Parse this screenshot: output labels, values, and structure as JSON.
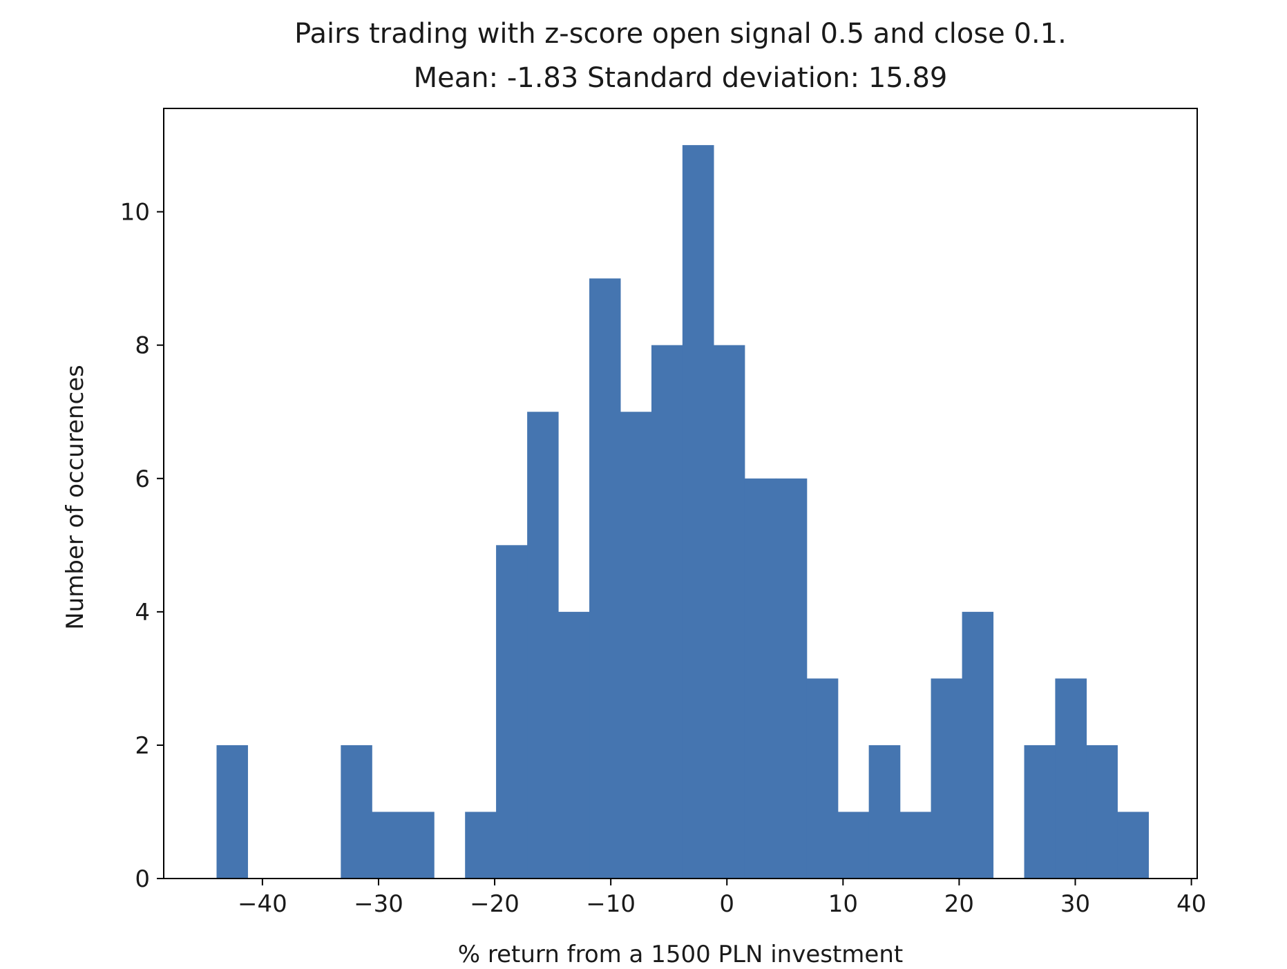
{
  "colors": {
    "bar": "#4575b0",
    "axis": "#000000",
    "text": "#1a1a1a"
  },
  "chart_data": {
    "type": "bar",
    "title": "Pairs trading with z-score open signal 0.5 and close 0.1.",
    "subtitle": "Mean: -1.83 Standard deviation: 15.89",
    "xlabel": "% return from a 1500 PLN investment",
    "ylabel": "Number of occurences",
    "xlim": [
      -48.5,
      40.5
    ],
    "ylim": [
      0,
      11.55
    ],
    "xticks": [
      -40,
      -30,
      -20,
      -10,
      0,
      10,
      20,
      30,
      40
    ],
    "xtick_labels": [
      "−40",
      "−30",
      "−20",
      "−10",
      "0",
      "10",
      "20",
      "30",
      "40"
    ],
    "yticks": [
      0,
      2,
      4,
      6,
      8,
      10
    ],
    "ytick_labels": [
      "0",
      "2",
      "4",
      "6",
      "8",
      "10"
    ],
    "grid": false,
    "bins": [
      {
        "x0": -43.95,
        "x1": -41.28,
        "count": 2
      },
      {
        "x0": -41.28,
        "x1": -38.6,
        "count": 0
      },
      {
        "x0": -38.6,
        "x1": -35.93,
        "count": 0
      },
      {
        "x0": -35.93,
        "x1": -33.25,
        "count": 0
      },
      {
        "x0": -33.25,
        "x1": -30.58,
        "count": 2
      },
      {
        "x0": -30.58,
        "x1": -27.9,
        "count": 1
      },
      {
        "x0": -27.9,
        "x1": -25.23,
        "count": 1
      },
      {
        "x0": -25.23,
        "x1": -22.55,
        "count": 0
      },
      {
        "x0": -22.55,
        "x1": -19.88,
        "count": 1
      },
      {
        "x0": -19.88,
        "x1": -17.2,
        "count": 5
      },
      {
        "x0": -17.2,
        "x1": -14.53,
        "count": 7
      },
      {
        "x0": -14.53,
        "x1": -11.85,
        "count": 4
      },
      {
        "x0": -11.85,
        "x1": -9.18,
        "count": 9
      },
      {
        "x0": -9.18,
        "x1": -6.5,
        "count": 7
      },
      {
        "x0": -6.5,
        "x1": -3.83,
        "count": 8
      },
      {
        "x0": -3.83,
        "x1": -1.15,
        "count": 11
      },
      {
        "x0": -1.15,
        "x1": 1.52,
        "count": 8
      },
      {
        "x0": 1.52,
        "x1": 4.2,
        "count": 6
      },
      {
        "x0": 4.2,
        "x1": 6.87,
        "count": 6
      },
      {
        "x0": 6.87,
        "x1": 9.55,
        "count": 3
      },
      {
        "x0": 9.55,
        "x1": 12.22,
        "count": 1
      },
      {
        "x0": 12.22,
        "x1": 14.9,
        "count": 2
      },
      {
        "x0": 14.9,
        "x1": 17.57,
        "count": 1
      },
      {
        "x0": 17.57,
        "x1": 20.25,
        "count": 3
      },
      {
        "x0": 20.25,
        "x1": 22.92,
        "count": 4
      },
      {
        "x0": 22.92,
        "x1": 25.6,
        "count": 0
      },
      {
        "x0": 25.6,
        "x1": 28.27,
        "count": 2
      },
      {
        "x0": 28.27,
        "x1": 30.95,
        "count": 3
      },
      {
        "x0": 30.95,
        "x1": 33.62,
        "count": 2
      },
      {
        "x0": 33.62,
        "x1": 36.3,
        "count": 1
      }
    ]
  }
}
